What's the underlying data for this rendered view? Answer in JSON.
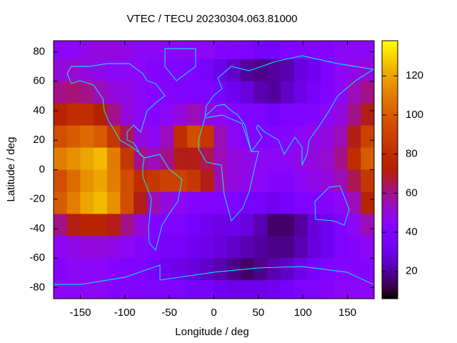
{
  "chart_data": {
    "type": "heatmap",
    "title": "VTEC / TECU 20230304.063.81000",
    "x_label": "Longitude / deg",
    "y_label": "Latitude / deg",
    "xlim": [
      -180,
      180
    ],
    "ylim": [
      -87.5,
      87.5
    ],
    "clim": [
      6,
      138
    ],
    "xticks": [
      -150,
      -100,
      -50,
      0,
      50,
      100,
      150
    ],
    "yticks": [
      -80,
      -60,
      -40,
      -20,
      0,
      20,
      40,
      60,
      80
    ],
    "cticks": [
      20,
      40,
      60,
      80,
      100,
      120
    ],
    "palette": "rgbformulae 7,5,15",
    "x": [
      -172.5,
      -157.5,
      -142.5,
      -127.5,
      -112.5,
      -97.5,
      -82.5,
      -67.5,
      -52.5,
      -37.5,
      -22.5,
      -7.5,
      7.5,
      22.5,
      37.5,
      52.5,
      67.5,
      82.5,
      97.5,
      112.5,
      127.5,
      142.5,
      157.5,
      172.5
    ],
    "y": [
      82.5,
      67.5,
      52.5,
      37.5,
      22.5,
      7.5,
      -7.5,
      -22.5,
      -37.5,
      -52.5,
      -67.5,
      -82.5
    ],
    "z": [
      [
        45,
        45,
        48,
        50,
        50,
        48,
        45,
        45,
        45,
        45,
        45,
        45,
        42,
        40,
        38,
        35,
        35,
        38,
        40,
        42,
        42,
        45,
        45,
        45
      ],
      [
        50,
        52,
        50,
        48,
        45,
        45,
        45,
        42,
        40,
        40,
        38,
        35,
        30,
        25,
        20,
        18,
        20,
        22,
        28,
        32,
        38,
        45,
        48,
        50
      ],
      [
        60,
        62,
        60,
        55,
        50,
        48,
        45,
        42,
        42,
        40,
        38,
        38,
        35,
        32,
        28,
        22,
        20,
        25,
        30,
        35,
        40,
        45,
        55,
        60
      ],
      [
        75,
        80,
        80,
        72,
        60,
        50,
        45,
        42,
        45,
        50,
        55,
        50,
        45,
        42,
        40,
        38,
        35,
        38,
        40,
        42,
        45,
        50,
        60,
        70
      ],
      [
        95,
        100,
        105,
        100,
        85,
        65,
        50,
        45,
        55,
        80,
        95,
        85,
        55,
        45,
        42,
        40,
        40,
        42,
        45,
        48,
        50,
        55,
        70,
        90
      ],
      [
        110,
        115,
        120,
        125,
        110,
        85,
        60,
        55,
        60,
        70,
        70,
        65,
        55,
        50,
        48,
        45,
        45,
        45,
        48,
        50,
        52,
        60,
        80,
        100
      ],
      [
        95,
        105,
        115,
        120,
        110,
        95,
        80,
        85,
        90,
        90,
        85,
        70,
        55,
        50,
        48,
        45,
        42,
        42,
        45,
        48,
        50,
        55,
        65,
        85
      ],
      [
        100,
        110,
        120,
        125,
        115,
        95,
        70,
        55,
        50,
        45,
        42,
        40,
        40,
        38,
        35,
        35,
        32,
        35,
        38,
        40,
        42,
        45,
        55,
        75
      ],
      [
        60,
        70,
        75,
        75,
        70,
        60,
        50,
        40,
        38,
        38,
        35,
        32,
        30,
        30,
        28,
        22,
        15,
        15,
        20,
        28,
        32,
        38,
        45,
        55
      ],
      [
        45,
        48,
        50,
        50,
        48,
        45,
        42,
        38,
        35,
        35,
        32,
        30,
        28,
        25,
        22,
        20,
        18,
        18,
        22,
        28,
        32,
        38,
        42,
        45
      ],
      [
        42,
        45,
        45,
        45,
        42,
        40,
        38,
        35,
        32,
        30,
        28,
        25,
        22,
        18,
        15,
        18,
        22,
        25,
        30,
        35,
        38,
        42,
        42,
        42
      ],
      [
        45,
        45,
        45,
        45,
        42,
        42,
        40,
        40,
        38,
        38,
        35,
        35,
        32,
        30,
        30,
        30,
        32,
        35,
        38,
        40,
        42,
        45,
        45,
        45
      ]
    ]
  }
}
